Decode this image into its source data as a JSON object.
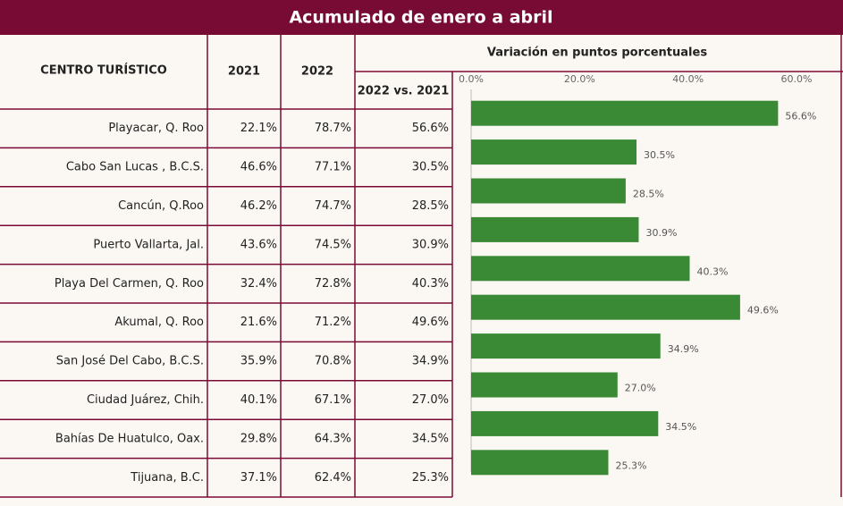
{
  "header": {
    "title": "Acumulado de enero a abril"
  },
  "table": {
    "columns": [
      "CENTRO TURÍSTICO",
      "2021",
      "2022",
      "2022 vs. 2021"
    ],
    "rows": [
      [
        "Playacar, Q. Roo",
        "22.1%",
        "78.7%",
        "56.6%"
      ],
      [
        "Cabo San Lucas , B.C.S.",
        "46.6%",
        "77.1%",
        "30.5%"
      ],
      [
        "Cancún, Q.Roo",
        "46.2%",
        "74.7%",
        "28.5%"
      ],
      [
        "Puerto Vallarta, Jal.",
        "43.6%",
        "74.5%",
        "30.9%"
      ],
      [
        "Playa Del Carmen, Q. Roo",
        "32.4%",
        "72.8%",
        "40.3%"
      ],
      [
        "Akumal, Q. Roo",
        "21.6%",
        "71.2%",
        "49.6%"
      ],
      [
        "San José Del Cabo, B.C.S.",
        "35.9%",
        "70.8%",
        "34.9%"
      ],
      [
        "Ciudad Juárez, Chih.",
        "40.1%",
        "67.1%",
        "27.0%"
      ],
      [
        "Bahías De Huatulco, Oax.",
        "29.8%",
        "64.3%",
        "34.5%"
      ],
      [
        "Tijuana, B.C.",
        "37.1%",
        "62.4%",
        "25.3%"
      ]
    ]
  },
  "chart_data": {
    "type": "bar",
    "orientation": "horizontal",
    "title": "Variación en puntos porcentuales",
    "values": [
      56.6,
      30.5,
      28.5,
      30.9,
      40.3,
      49.6,
      34.9,
      27.0,
      34.5,
      25.3
    ],
    "value_labels": [
      "56.6%",
      "30.5%",
      "28.5%",
      "30.9%",
      "40.3%",
      "49.6%",
      "34.9%",
      "27.0%",
      "34.5%",
      "25.3%"
    ],
    "color": "#3a8a35",
    "xlim": [
      0,
      60
    ],
    "xticks": [
      {
        "value": 0,
        "label": "0.0%"
      },
      {
        "value": 20,
        "label": "20.0%"
      },
      {
        "value": 40,
        "label": "40.0%"
      },
      {
        "value": 60,
        "label": "60.0%"
      }
    ]
  }
}
